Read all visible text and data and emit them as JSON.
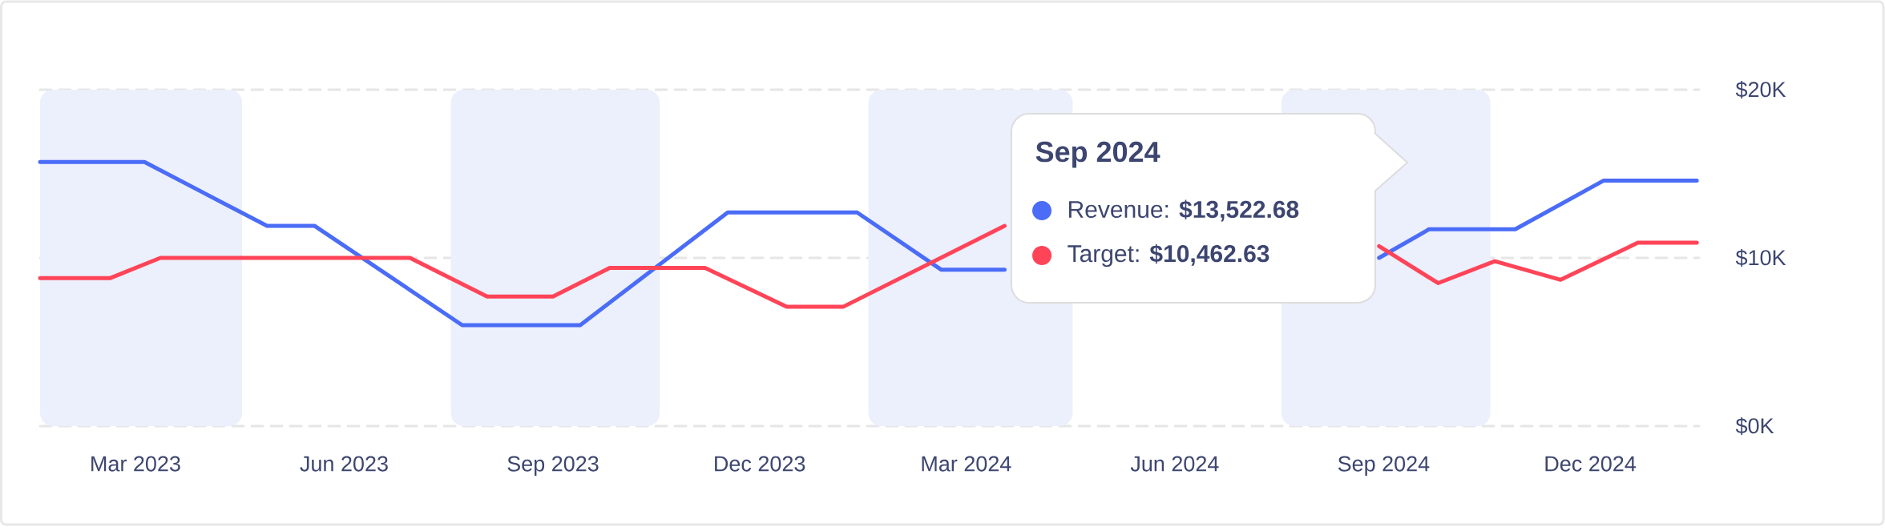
{
  "chart_data": {
    "type": "line",
    "xlim": [
      "2023-02-01",
      "2025-02-01"
    ],
    "xticks": [
      {
        "value": "2023-03-15",
        "label": "Mar 2023"
      },
      {
        "value": "2023-06-15",
        "label": "Jun 2023"
      },
      {
        "value": "2023-09-15",
        "label": "Sep 2023"
      },
      {
        "value": "2023-12-15",
        "label": "Dec 2023"
      },
      {
        "value": "2024-03-15",
        "label": "Mar 2024"
      },
      {
        "value": "2024-06-15",
        "label": "Jun 2024"
      },
      {
        "value": "2024-09-15",
        "label": "Sep 2024"
      },
      {
        "value": "2024-12-15",
        "label": "Dec 2024"
      }
    ],
    "ylim": [
      0,
      20000
    ],
    "yticks": [
      {
        "value": 0,
        "label": "$0K"
      },
      {
        "value": 10000,
        "label": "$10K"
      },
      {
        "value": 20000,
        "label": "$20K"
      }
    ],
    "grid": "y",
    "bands": [
      {
        "axis": "x",
        "from": "2023-02-01",
        "to": "2023-05-01",
        "color": "#eceffc"
      },
      {
        "axis": "x",
        "from": "2023-08-01",
        "to": "2023-11-01",
        "color": "#eceffc"
      },
      {
        "axis": "x",
        "from": "2024-02-01",
        "to": "2024-05-01",
        "color": "#eceffc"
      },
      {
        "axis": "x",
        "from": "2024-08-01",
        "to": "2024-11-01",
        "color": "#eceffc"
      }
    ],
    "series": [
      {
        "color": "#4a6cf7",
        "x": [
          "2023-02-01",
          "2023-03-19",
          "2023-05-12",
          "2023-06-02",
          "2023-08-06",
          "2023-09-27",
          "2023-12-01",
          "2024-01-27",
          "2024-03-04",
          "2024-04-01",
          "2024-06-15",
          "2024-09-13",
          "2024-10-05",
          "2024-11-12",
          "2024-12-21",
          "2025-01-31"
        ],
        "values": [
          15700,
          15700,
          11900,
          11900,
          6000,
          6000,
          12700,
          12700,
          9300,
          9300,
          null,
          10000,
          11700,
          11700,
          14600,
          14600
        ]
      },
      {
        "color": "#ff4458",
        "x": [
          "2023-02-01",
          "2023-03-04",
          "2023-03-26",
          "2023-07-14",
          "2023-08-17",
          "2023-09-15",
          "2023-10-10",
          "2023-11-21",
          "2023-12-27",
          "2024-01-21",
          "2024-04-01",
          "2024-06-15",
          "2024-09-13",
          "2024-10-09",
          "2024-11-03",
          "2024-12-02",
          "2025-01-05",
          "2025-01-31"
        ],
        "values": [
          8800,
          8800,
          10000,
          10000,
          7700,
          7700,
          9400,
          9400,
          7100,
          7100,
          11900,
          null,
          10700,
          8500,
          9800,
          8700,
          10900,
          10900
        ]
      }
    ],
    "annotations": [
      "Sep 2024",
      "Revenue: **$13,522.68**",
      "Target: **$10,462.63**"
    ]
  }
}
